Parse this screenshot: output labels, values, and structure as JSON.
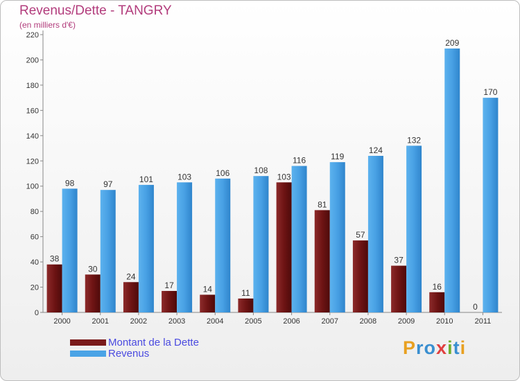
{
  "title": "Revenus/Dette - TANGRY",
  "subtitle": "(en milliers d'€)",
  "logo": [
    "P",
    "r",
    "o",
    "x",
    "i",
    "t",
    "i"
  ],
  "colors": {
    "debt": "#7a1a1a",
    "revenue": "#4aa3e6",
    "title": "#b23c7c",
    "legend_text": "#4a4ae0",
    "logo": [
      "#e8a020",
      "#3a8fd0",
      "#3a8fd0",
      "#e04040",
      "#70b030",
      "#3a8fd0",
      "#e8a020"
    ]
  },
  "chart_data": {
    "type": "bar",
    "categories": [
      "2000",
      "2001",
      "2002",
      "2003",
      "2004",
      "2005",
      "2006",
      "2007",
      "2008",
      "2009",
      "2010",
      "2011"
    ],
    "series": [
      {
        "name": "Montant de la Dette",
        "values": [
          38,
          30,
          24,
          17,
          14,
          11,
          103,
          81,
          57,
          37,
          16,
          0
        ]
      },
      {
        "name": "Revenus",
        "values": [
          98,
          97,
          101,
          103,
          106,
          108,
          116,
          119,
          124,
          132,
          209,
          170
        ]
      }
    ],
    "yticks": [
      0,
      20,
      40,
      60,
      80,
      100,
      120,
      140,
      160,
      180,
      200,
      220
    ],
    "ylim": [
      0,
      220
    ],
    "grid": false,
    "legend_position": "bottom-left"
  }
}
